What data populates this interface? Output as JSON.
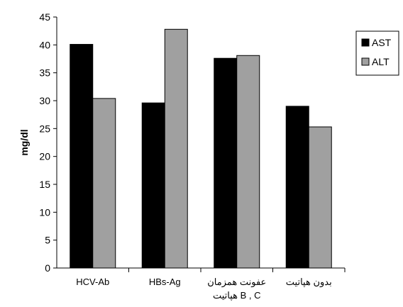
{
  "chart_data": {
    "type": "bar",
    "title": "",
    "xlabel": "",
    "ylabel": "mg/dl",
    "ylim": [
      0,
      45
    ],
    "yticks": [
      0,
      5,
      10,
      15,
      20,
      25,
      30,
      35,
      40,
      45
    ],
    "grid": false,
    "legend_position": "right",
    "categories": [
      [
        "HCV-Ab"
      ],
      [
        "HBs-Ag"
      ],
      [
        "عفونت همزمان",
        "هپاتیت B , C"
      ],
      [
        "بدون هپاتیت"
      ]
    ],
    "series": [
      {
        "name": "AST",
        "color": "#000000",
        "values": [
          40.1,
          29.6,
          37.6,
          29.0
        ]
      },
      {
        "name": "ALT",
        "color": "#a0a0a0",
        "values": [
          30.4,
          42.8,
          38.1,
          25.3
        ]
      }
    ]
  }
}
